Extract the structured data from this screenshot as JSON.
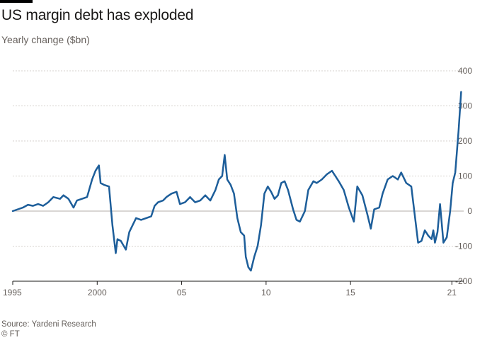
{
  "header": {
    "title": "US margin debt has exploded",
    "subtitle": "Yearly change ($bn)"
  },
  "footer": {
    "source": "Source: Yardeni Research",
    "copyright": "© FT"
  },
  "colors": {
    "line": "#1d5e9a",
    "grid": "#d6d2cd",
    "zero_line": "#b3aea9",
    "text": "#66605c"
  },
  "chart_data": {
    "type": "line",
    "title": "US margin debt has exploded",
    "subtitle": "Yearly change ($bn)",
    "xlabel": "",
    "ylabel": "",
    "xlim": [
      1995,
      2021.7
    ],
    "ylim": [
      -200,
      400
    ],
    "y_ticks": [
      400,
      300,
      200,
      100,
      0,
      -100,
      -200
    ],
    "y_tick_labels": [
      "400",
      "300",
      "200",
      "100",
      "0",
      "-100",
      "-200"
    ],
    "x_ticks": [
      1995,
      2000,
      2005,
      2010,
      2015,
      2021
    ],
    "x_tick_labels": [
      "1995",
      "2000",
      "05",
      "10",
      "15",
      "21"
    ],
    "grid": true,
    "series": [
      {
        "x": [
          1995.0,
          1995.3,
          1995.6,
          1995.9,
          1996.2,
          1996.5,
          1996.8,
          1997.1,
          1997.4,
          1997.8,
          1998.0,
          1998.3,
          1998.6,
          1998.8,
          1999.1,
          1999.4,
          1999.7,
          1999.9,
          2000.1,
          2000.2,
          2000.4,
          2000.7,
          2000.9,
          2001.1,
          2001.2,
          2001.4,
          2001.7,
          2001.9,
          2002.1,
          2002.3,
          2002.6,
          2002.9,
          2003.2,
          2003.4,
          2003.6,
          2003.9,
          2004.1,
          2004.4,
          2004.7,
          2004.9,
          2005.2,
          2005.5,
          2005.8,
          2006.1,
          2006.4,
          2006.7,
          2007.0,
          2007.2,
          2007.4,
          2007.55,
          2007.7,
          2007.9,
          2008.1,
          2008.3,
          2008.5,
          2008.7,
          2008.8,
          2008.95,
          2009.1,
          2009.3,
          2009.5,
          2009.7,
          2009.9,
          2010.1,
          2010.3,
          2010.5,
          2010.7,
          2010.9,
          2011.1,
          2011.3,
          2011.6,
          2011.8,
          2012.0,
          2012.3,
          2012.5,
          2012.8,
          2013.0,
          2013.3,
          2013.6,
          2013.9,
          2014.1,
          2014.3,
          2014.6,
          2014.9,
          2015.2,
          2015.4,
          2015.7,
          2016.0,
          2016.2,
          2016.4,
          2016.7,
          2016.9,
          2017.2,
          2017.5,
          2017.8,
          2018.0,
          2018.3,
          2018.6,
          2018.8,
          2019.0,
          2019.2,
          2019.4,
          2019.6,
          2019.8,
          2019.9,
          2020.0,
          2020.15,
          2020.3,
          2020.5,
          2020.7,
          2020.9,
          2021.05,
          2021.2,
          2021.4,
          2021.55
        ],
        "values": [
          0,
          5,
          10,
          18,
          15,
          20,
          15,
          25,
          40,
          35,
          45,
          35,
          10,
          30,
          35,
          40,
          90,
          115,
          130,
          80,
          75,
          70,
          -40,
          -120,
          -80,
          -85,
          -110,
          -60,
          -40,
          -20,
          -25,
          -20,
          -15,
          15,
          25,
          30,
          40,
          50,
          55,
          20,
          25,
          40,
          25,
          30,
          45,
          30,
          60,
          90,
          100,
          160,
          90,
          75,
          50,
          -20,
          -60,
          -70,
          -130,
          -160,
          -170,
          -130,
          -100,
          -40,
          50,
          70,
          55,
          35,
          45,
          80,
          85,
          60,
          5,
          -25,
          -30,
          0,
          60,
          85,
          80,
          90,
          105,
          115,
          100,
          85,
          60,
          10,
          -30,
          70,
          45,
          -10,
          -50,
          5,
          10,
          50,
          90,
          100,
          90,
          110,
          80,
          70,
          -10,
          -90,
          -85,
          -55,
          -70,
          -80,
          -55,
          -90,
          -60,
          20,
          -90,
          -75,
          0,
          80,
          110,
          230,
          340
        ]
      }
    ]
  }
}
